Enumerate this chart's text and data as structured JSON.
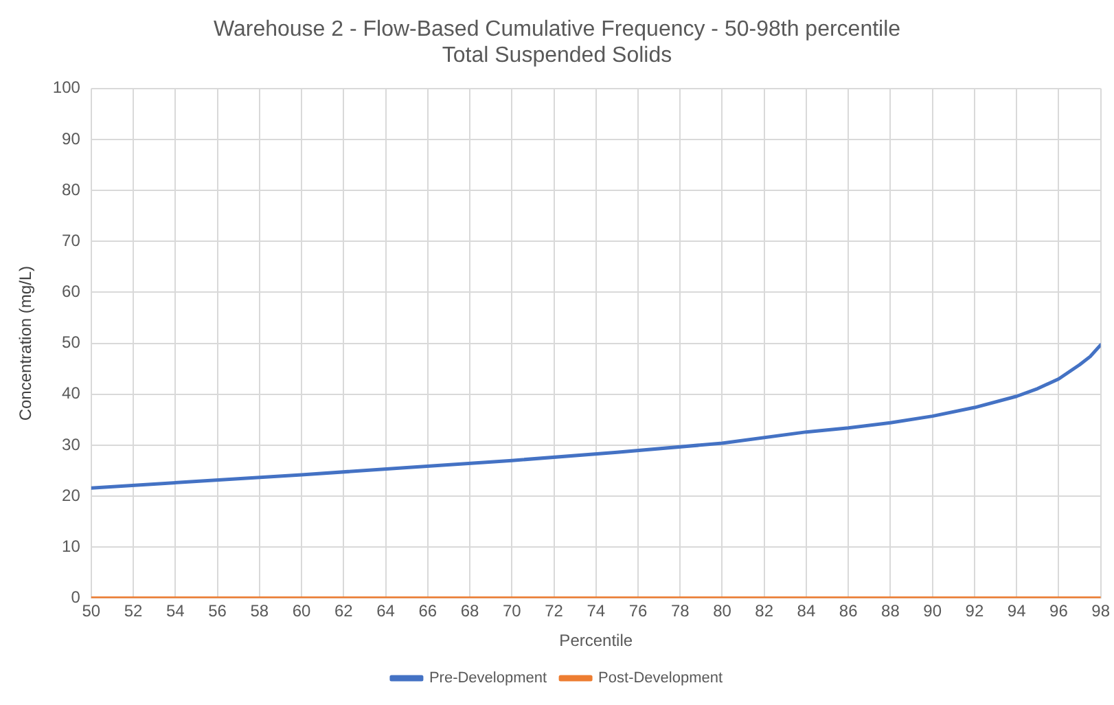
{
  "chart_data": {
    "type": "line",
    "title": "Warehouse 2 - Flow-Based Cumulative Frequency - 50-98th percentile",
    "subtitle": "Total Suspended Solids",
    "xlabel": "Percentile",
    "ylabel": "Concentration (mg/L)",
    "xlim": [
      50,
      98
    ],
    "xticks": [
      50,
      52,
      54,
      56,
      58,
      60,
      62,
      64,
      66,
      68,
      70,
      72,
      74,
      76,
      78,
      80,
      82,
      84,
      86,
      88,
      90,
      92,
      94,
      96,
      98
    ],
    "ylim": [
      0,
      100
    ],
    "yticks": [
      0,
      10,
      20,
      30,
      40,
      50,
      60,
      70,
      80,
      90,
      100
    ],
    "grid": true,
    "legend": "bottom",
    "marker": "none",
    "line_style": "solid",
    "series": [
      {
        "name": "Pre-Development",
        "color": "#4472c4",
        "x": [
          50,
          55,
          60,
          65,
          70,
          75,
          80,
          84,
          86,
          88,
          90,
          92,
          94,
          95,
          96,
          97,
          97.5,
          98
        ],
        "values": [
          21.6,
          22.9,
          24.2,
          25.6,
          27.0,
          28.6,
          30.4,
          32.6,
          33.4,
          34.4,
          35.7,
          37.4,
          39.6,
          41.1,
          43.0,
          45.8,
          47.4,
          49.7
        ]
      },
      {
        "name": "Post-Development",
        "color": "#ed7d31",
        "x": [
          50,
          98
        ],
        "values": [
          0,
          0
        ]
      }
    ]
  }
}
